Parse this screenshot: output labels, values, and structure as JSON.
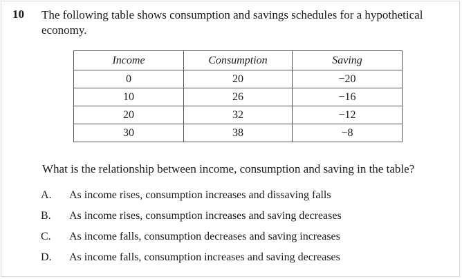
{
  "question": {
    "number": "10",
    "text": "The following table shows consumption and savings schedules for a hypothetical economy."
  },
  "table": {
    "headers": [
      "Income",
      "Consumption",
      "Saving"
    ],
    "rows": [
      [
        "0",
        "20",
        "−20"
      ],
      [
        "10",
        "26",
        "−16"
      ],
      [
        "20",
        "32",
        "−12"
      ],
      [
        "30",
        "38",
        "−8"
      ]
    ]
  },
  "prompt": "What is the relationship between income, consumption and saving in the table?",
  "options": [
    {
      "letter": "A.",
      "text": "As income rises, consumption increases and dissaving falls"
    },
    {
      "letter": "B.",
      "text": "As income rises, consumption increases and saving decreases"
    },
    {
      "letter": "C.",
      "text": "As income falls, consumption decreases and saving increases"
    },
    {
      "letter": "D.",
      "text": "As income falls, consumption increases and saving decreases"
    }
  ]
}
